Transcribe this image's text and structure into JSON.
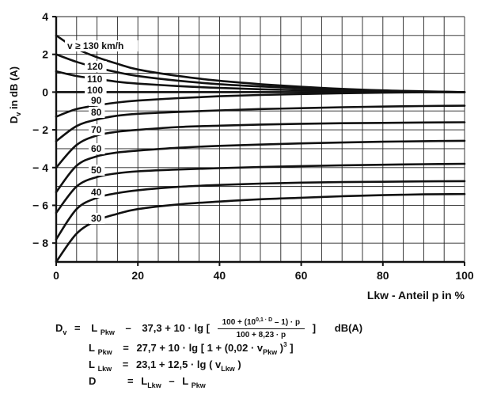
{
  "chart_data": {
    "type": "line",
    "title": "",
    "xlabel": "Lkw - Anteil p in %",
    "ylabel_main": "D",
    "ylabel_sub": "v",
    "ylabel_rest": " in dB (A)",
    "xlim": [
      0,
      100
    ],
    "ylim": [
      -9,
      4
    ],
    "x_ticks": [
      0,
      20,
      40,
      60,
      80,
      100
    ],
    "y_ticks": [
      4,
      2,
      0,
      -2,
      -4,
      -6,
      -8
    ],
    "y_tick_labels": [
      "4",
      "2",
      "0",
      "− 2",
      "− 4",
      "− 6",
      "− 8"
    ],
    "grid": true,
    "speed_labels": [
      "v ≥ 130 km/h",
      "120",
      "110",
      "100",
      "90",
      "80",
      "70",
      "60",
      "50",
      "40",
      "30"
    ],
    "series": [
      {
        "name": "v ≥ 130 km/h",
        "x": [
          0,
          5,
          10,
          15,
          20,
          30,
          40,
          50,
          60,
          70,
          80,
          90,
          100
        ],
        "y": [
          3.0,
          2.3,
          1.85,
          1.5,
          1.2,
          0.85,
          0.6,
          0.42,
          0.28,
          0.17,
          0.09,
          0.04,
          0.0
        ]
      },
      {
        "name": "120",
        "x": [
          0,
          5,
          10,
          15,
          20,
          30,
          40,
          50,
          60,
          70,
          80,
          90,
          100
        ],
        "y": [
          2.0,
          1.6,
          1.3,
          1.05,
          0.85,
          0.6,
          0.42,
          0.3,
          0.2,
          0.12,
          0.06,
          0.03,
          0.0
        ]
      },
      {
        "name": "110",
        "x": [
          0,
          5,
          10,
          15,
          20,
          30,
          40,
          50,
          60,
          70,
          80,
          90,
          100
        ],
        "y": [
          1.1,
          0.85,
          0.7,
          0.55,
          0.45,
          0.32,
          0.22,
          0.15,
          0.1,
          0.06,
          0.03,
          0.01,
          0.0
        ]
      },
      {
        "name": "100",
        "x": [
          0,
          10,
          20,
          40,
          60,
          80,
          100
        ],
        "y": [
          0.0,
          0.0,
          0.0,
          0.0,
          0.0,
          0.0,
          0.0
        ]
      },
      {
        "name": "90",
        "x": [
          0,
          5,
          10,
          15,
          20,
          30,
          40,
          50,
          60,
          70,
          80,
          90,
          100
        ],
        "y": [
          -1.3,
          -0.9,
          -0.7,
          -0.55,
          -0.45,
          -0.32,
          -0.22,
          -0.15,
          -0.1,
          -0.06,
          -0.03,
          -0.01,
          0.0
        ]
      },
      {
        "name": "80",
        "x": [
          0,
          5,
          10,
          15,
          20,
          30,
          40,
          50,
          60,
          70,
          80,
          90,
          100
        ],
        "y": [
          -2.6,
          -1.8,
          -1.45,
          -1.25,
          -1.15,
          -1.05,
          -0.97,
          -0.9,
          -0.85,
          -0.8,
          -0.77,
          -0.74,
          -0.72
        ]
      },
      {
        "name": "70",
        "x": [
          0,
          5,
          10,
          15,
          20,
          30,
          40,
          50,
          60,
          70,
          80,
          90,
          100
        ],
        "y": [
          -4.0,
          -2.8,
          -2.3,
          -2.1,
          -2.0,
          -1.85,
          -1.78,
          -1.72,
          -1.68,
          -1.65,
          -1.63,
          -1.61,
          -1.6
        ]
      },
      {
        "name": "60",
        "x": [
          0,
          5,
          10,
          15,
          20,
          30,
          40,
          50,
          60,
          70,
          80,
          90,
          100
        ],
        "y": [
          -5.3,
          -3.9,
          -3.4,
          -3.2,
          -3.1,
          -2.95,
          -2.85,
          -2.78,
          -2.72,
          -2.67,
          -2.63,
          -2.6,
          -2.58
        ]
      },
      {
        "name": "50",
        "x": [
          0,
          5,
          10,
          15,
          20,
          30,
          40,
          50,
          60,
          70,
          80,
          90,
          100
        ],
        "y": [
          -6.4,
          -5.0,
          -4.5,
          -4.3,
          -4.2,
          -4.1,
          -4.03,
          -3.97,
          -3.92,
          -3.88,
          -3.85,
          -3.82,
          -3.8
        ]
      },
      {
        "name": "40",
        "x": [
          0,
          5,
          10,
          15,
          20,
          30,
          40,
          50,
          60,
          70,
          80,
          90,
          100
        ],
        "y": [
          -7.8,
          -6.2,
          -5.6,
          -5.35,
          -5.2,
          -5.02,
          -4.92,
          -4.85,
          -4.8,
          -4.77,
          -4.75,
          -4.73,
          -4.72
        ]
      },
      {
        "name": "30",
        "x": [
          0,
          5,
          10,
          15,
          20,
          30,
          40,
          50,
          60,
          70,
          80,
          90,
          100
        ],
        "y": [
          -9.0,
          -7.5,
          -6.8,
          -6.45,
          -6.2,
          -5.95,
          -5.8,
          -5.68,
          -5.6,
          -5.52,
          -5.46,
          -5.42,
          -5.4
        ]
      }
    ]
  },
  "formula": {
    "line1": {
      "lhs": "D",
      "lhs_sub": "v",
      "eq": "=",
      "t1": "L",
      "t1_sub": "Pkw",
      "op1": "–",
      "t2": "37,3 + 10 · lg [",
      "num_a": "100 + (10",
      "num_sup": "0,1 · D",
      "num_b": "– 1) · p",
      "den": "100 + 8,23 · p",
      "close": "]",
      "unit": "dB(A)"
    },
    "line2": {
      "lhs": "L",
      "lhs_sub": "Pkw",
      "eq": "=",
      "body_a": "27,7 + 10 · lg [ 1 + (0,02 · v",
      "body_sub": "Pkw",
      "body_b": ")",
      "body_sup": "3",
      "body_c": "]"
    },
    "line3": {
      "lhs": "L",
      "lhs_sub": "Lkw",
      "eq": "=",
      "body_a": "23,1 + 12,5 · lg ( v",
      "body_sub": "Lkw",
      "body_b": ")"
    },
    "line4": {
      "lhs": "D",
      "eq": "=",
      "a": "L",
      "a_sub": "Lkw",
      "op": "–",
      "b": "L",
      "b_sub": "Pkw"
    }
  }
}
